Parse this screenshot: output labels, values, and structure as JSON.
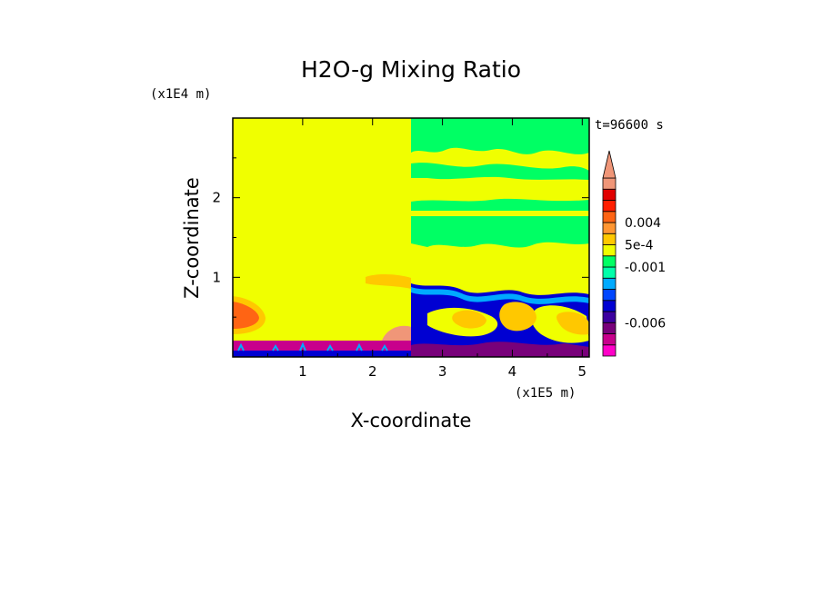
{
  "chart_data": {
    "type": "heatmap",
    "title": "H2O-g Mixing Ratio",
    "xlabel": "X-coordinate",
    "ylabel": "Z-coordinate",
    "x_unit_label": "(x1E5 m)",
    "y_unit_label": "(x1E4 m)",
    "time_label": "t=96600 s",
    "xlim": [
      0,
      5.1
    ],
    "ylim": [
      0,
      3.0
    ],
    "x_ticks": [
      {
        "value": 1,
        "label": "1"
      },
      {
        "value": 2,
        "label": "2"
      },
      {
        "value": 3,
        "label": "3"
      },
      {
        "value": 4,
        "label": "4"
      },
      {
        "value": 5,
        "label": "5"
      }
    ],
    "y_ticks": [
      {
        "value": 1,
        "label": "1"
      },
      {
        "value": 2,
        "label": "2"
      }
    ],
    "colorbar": {
      "colors": [
        "#ff00c8",
        "#c8008c",
        "#78007a",
        "#3c00a0",
        "#0000d2",
        "#0046ff",
        "#00aaff",
        "#00ffaa",
        "#00ff64",
        "#f0ff00",
        "#ffc800",
        "#ff9632",
        "#ff6414",
        "#ff1e00",
        "#e10000",
        "#f09678"
      ],
      "extend": "max",
      "tick_labels": [
        {
          "index": 12,
          "label": "0.004"
        },
        {
          "index": 10,
          "label": "5e-4"
        },
        {
          "index": 8,
          "label": "-0.001"
        },
        {
          "index": 3,
          "label": "-0.006"
        }
      ]
    },
    "regions": {
      "upper_left": {
        "x": [
          0,
          2.55
        ],
        "z": [
          0.2,
          3.0
        ],
        "color": "#f0ff00"
      },
      "surface_band": {
        "x": [
          0,
          2.55
        ],
        "z": [
          0,
          0.2
        ],
        "color": "#c8008c"
      },
      "left_warm_patch": {
        "x": [
          0,
          0.4
        ],
        "z": [
          0.3,
          0.75
        ],
        "color": "#ff6414"
      },
      "right_mixed": {
        "x": [
          2.55,
          5.1
        ],
        "z": [
          0,
          3.0
        ],
        "colors": [
          "#00ff64",
          "#f0ff00",
          "#0000d2",
          "#ffc800"
        ]
      }
    }
  }
}
